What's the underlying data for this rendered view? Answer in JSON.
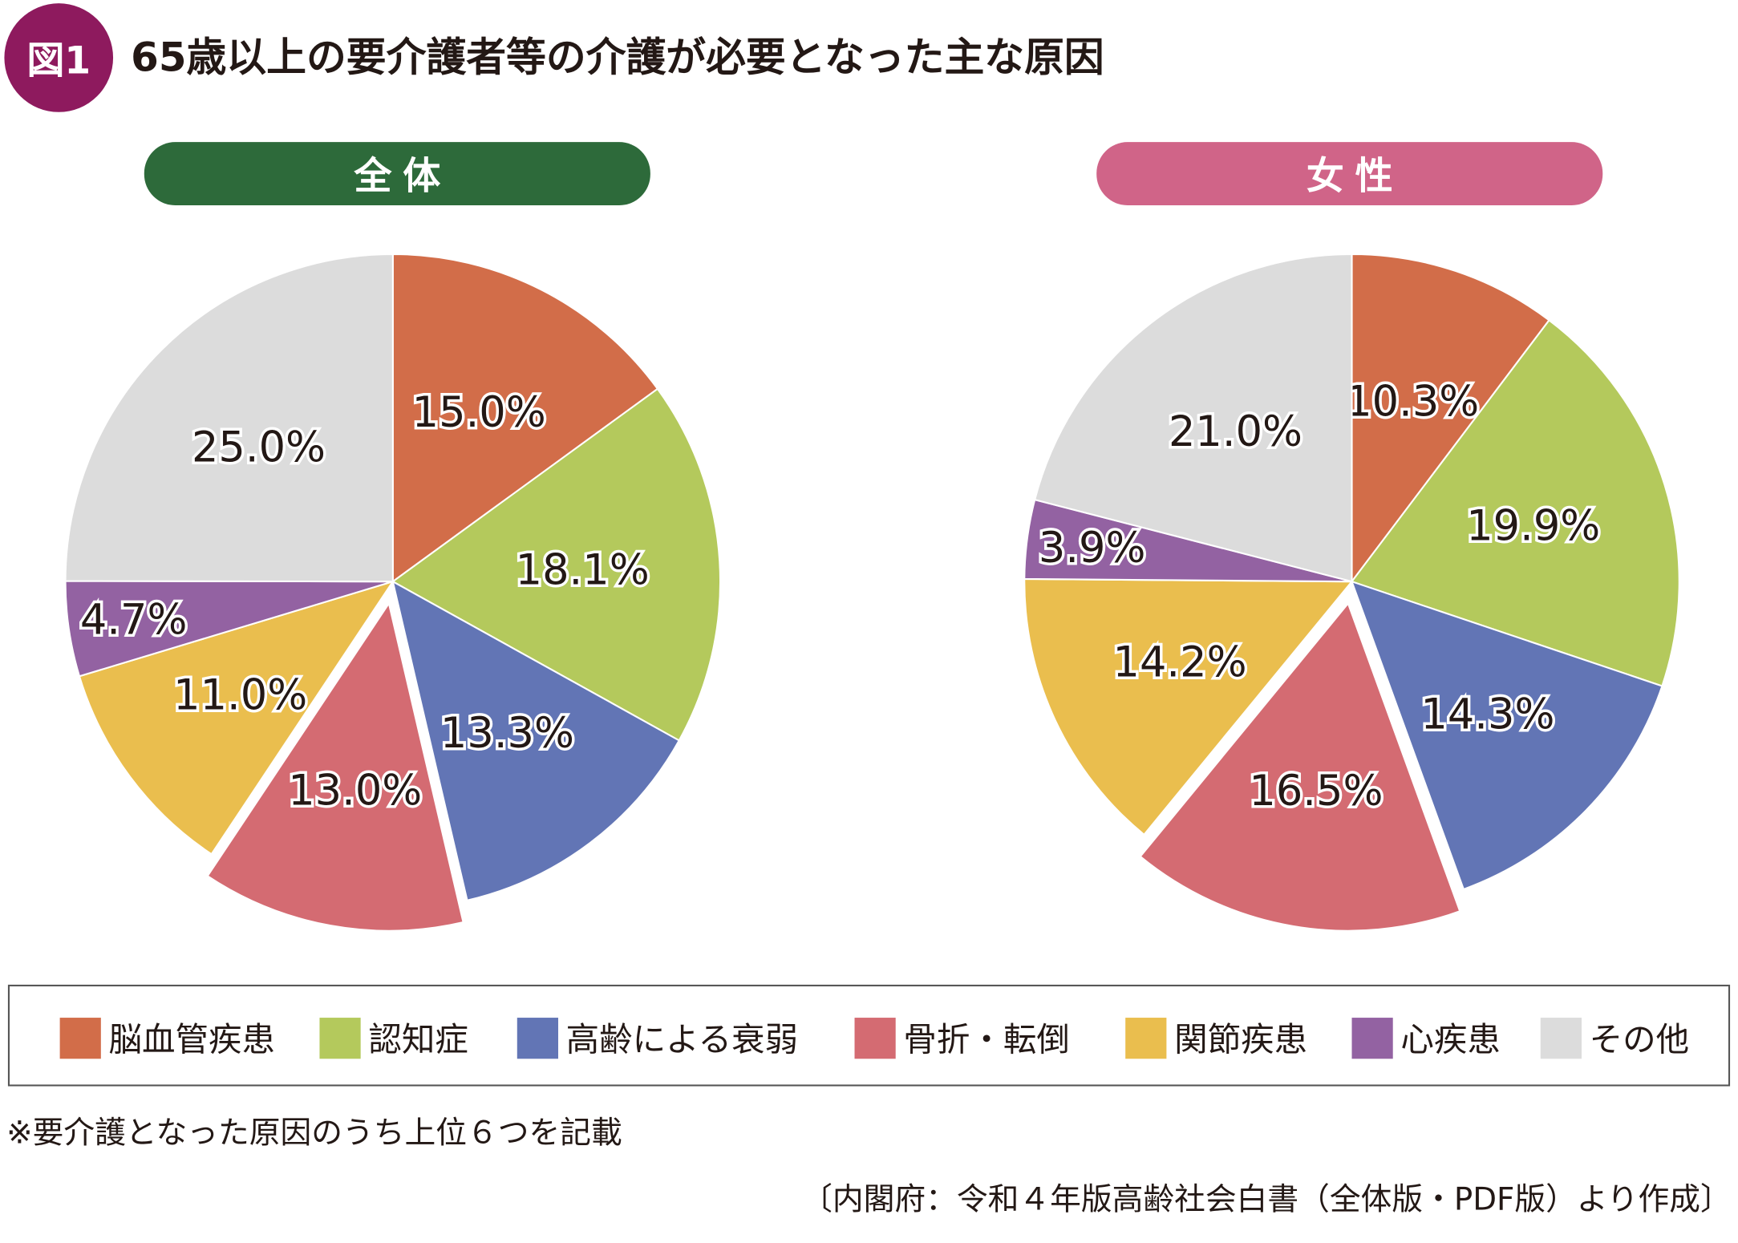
{
  "figure": {
    "badge": "図1",
    "title": "65歳以上の要介護者等の介護が必要となった主な原因",
    "badge_color": "#8E1A5E"
  },
  "chart_data": [
    {
      "type": "pie",
      "title": "全体",
      "header_color": "#2D6A3A",
      "categories": [
        "脳血管疾患",
        "認知症",
        "高齢による衰弱",
        "骨折・転倒",
        "関節疾患",
        "心疾患",
        "その他"
      ],
      "values": [
        15.0,
        18.1,
        13.3,
        13.0,
        11.0,
        4.7,
        25.0
      ],
      "labels": [
        "15.0%",
        "18.1%",
        "13.3%",
        "13.0%",
        "11.0%",
        "4.7%",
        "25.0%"
      ],
      "exploded": "骨折・転倒",
      "start": "top",
      "direction": "clockwise"
    },
    {
      "type": "pie",
      "title": "女性",
      "header_color": "#D06488",
      "categories": [
        "脳血管疾患",
        "認知症",
        "高齢による衰弱",
        "骨折・転倒",
        "関節疾患",
        "心疾患",
        "その他"
      ],
      "values": [
        10.3,
        19.9,
        14.3,
        16.5,
        14.2,
        3.9,
        21.0
      ],
      "labels": [
        "10.3%",
        "19.9%",
        "14.3%",
        "16.5%",
        "14.2%",
        "3.9%",
        "21.0%"
      ],
      "exploded": "骨折・転倒",
      "start": "top",
      "direction": "clockwise"
    }
  ],
  "legend": {
    "placement": "bottom",
    "items": [
      {
        "label": "脳血管疾患",
        "color": "#D26D49"
      },
      {
        "label": "認知症",
        "color": "#B4C95C"
      },
      {
        "label": "高齢による衰弱",
        "color": "#6275B5"
      },
      {
        "label": "骨折・転倒",
        "color": "#D46B72"
      },
      {
        "label": "関節疾患",
        "color": "#EABE4E"
      },
      {
        "label": "心疾患",
        "color": "#9362A2"
      },
      {
        "label": "その他",
        "color": "#DCDCDC"
      }
    ]
  },
  "footnote": "※要介護となった原因のうち上位６つを記載",
  "source": "〔内閣府：令和４年版高齢社会白書（全体版・PDF版）より作成〕"
}
